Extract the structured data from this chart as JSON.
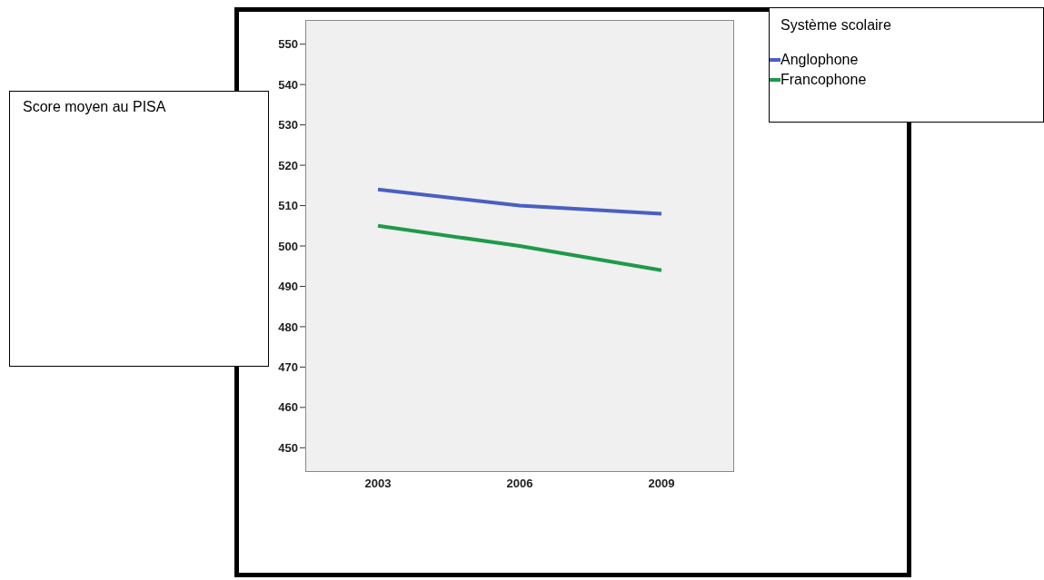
{
  "chart_data": {
    "type": "line",
    "annotations": [
      "Score moyen au PISA"
    ],
    "legend_title": "Système scolaire",
    "categories": [
      "2003",
      "2006",
      "2009"
    ],
    "series": [
      {
        "name": "Anglophone",
        "color": "#4a5fc1",
        "values": [
          514,
          510,
          508
        ]
      },
      {
        "name": "Francophone",
        "color": "#1e9a4a",
        "values": [
          505,
          500,
          494
        ]
      }
    ],
    "ylim": [
      444,
      556
    ],
    "yticks": [
      450,
      460,
      470,
      480,
      490,
      500,
      510,
      520,
      530,
      540,
      550
    ],
    "legend": "top right",
    "marker": "none",
    "line_style": "solid"
  }
}
